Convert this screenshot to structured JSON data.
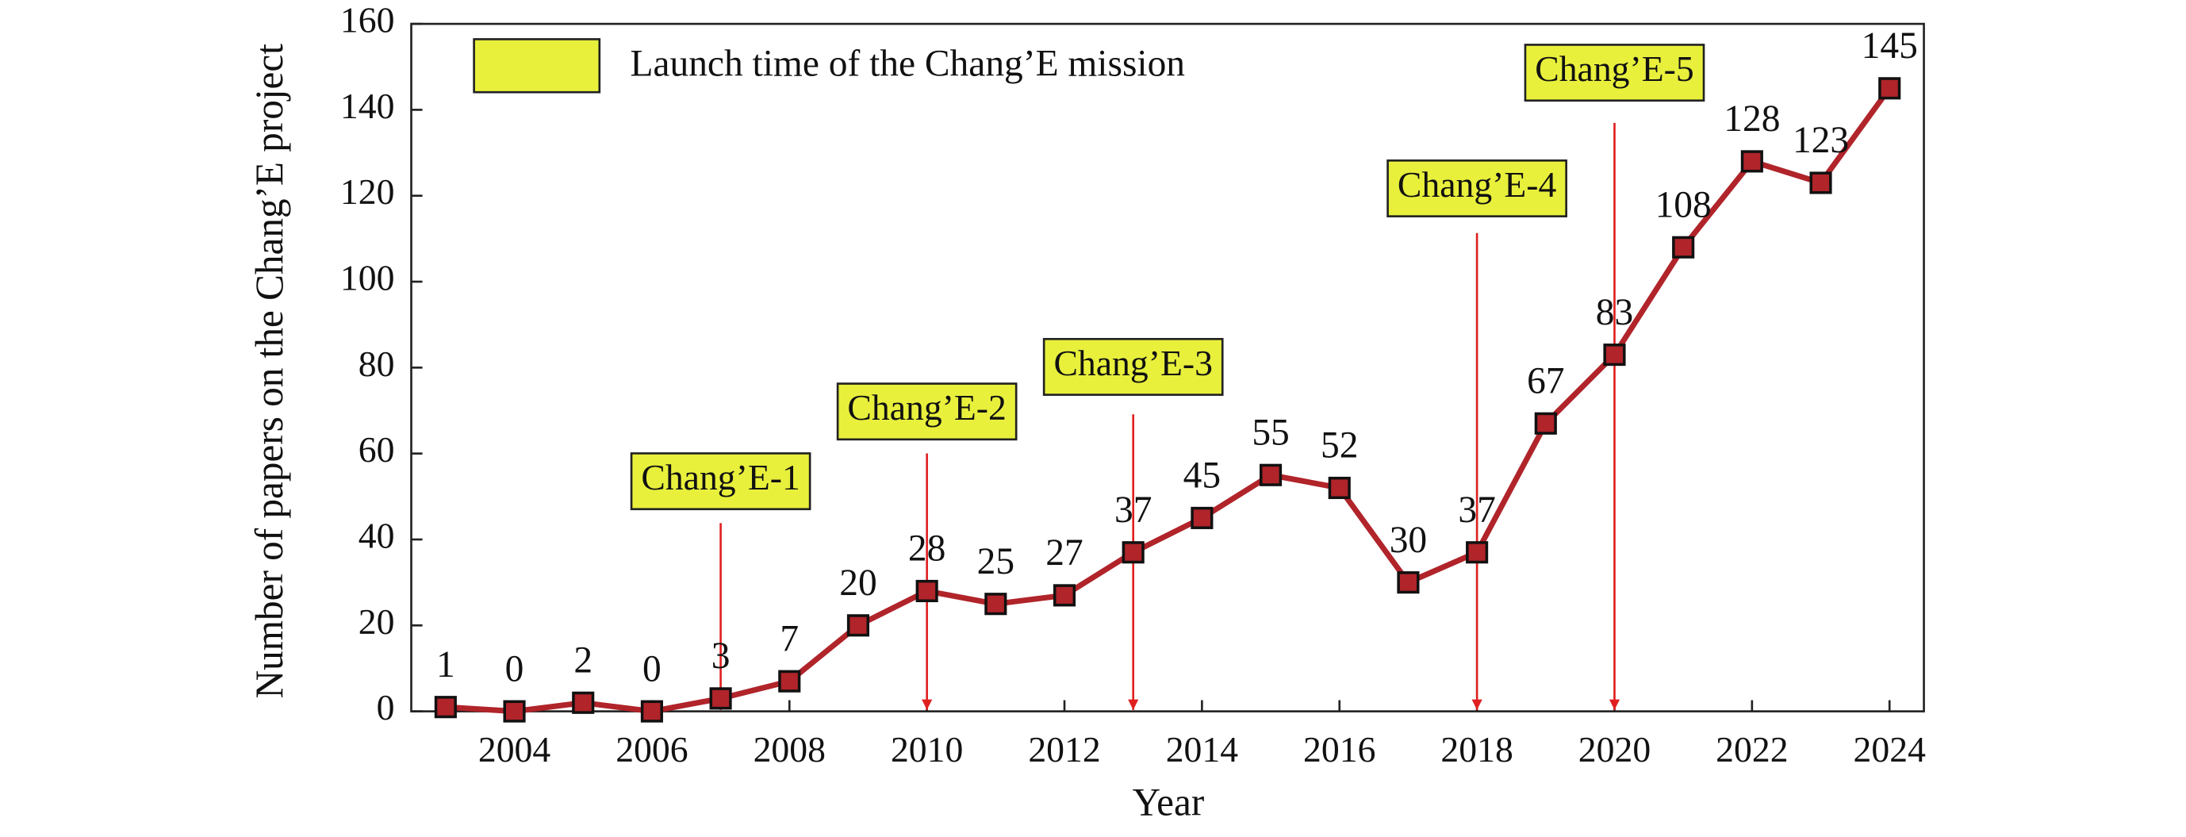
{
  "chart_data": {
    "type": "line",
    "x_label": "Year",
    "y_label": "Number of papers on the Chang’E project",
    "x": [
      2003,
      2004,
      2005,
      2006,
      2007,
      2008,
      2009,
      2010,
      2011,
      2012,
      2013,
      2014,
      2015,
      2016,
      2017,
      2018,
      2019,
      2020,
      2021,
      2022,
      2023,
      2024
    ],
    "series": [
      {
        "name": "Number of papers",
        "color": "#b0242a",
        "values": [
          1,
          0,
          2,
          0,
          3,
          7,
          20,
          28,
          25,
          27,
          37,
          45,
          55,
          52,
          30,
          37,
          67,
          83,
          108,
          128,
          123,
          145
        ]
      }
    ],
    "xlim": [
      2002.5,
      2024.5
    ],
    "xticks": [
      2004,
      2006,
      2008,
      2010,
      2012,
      2014,
      2016,
      2018,
      2020,
      2022,
      2024
    ],
    "ylim": [
      0,
      160
    ],
    "yticks": [
      0,
      20,
      40,
      60,
      80,
      100,
      120,
      140,
      160
    ],
    "legend": {
      "label": "Launch time of the Chang’E mission",
      "color": "#e8f03c",
      "position": "upper left"
    },
    "annotations": [
      {
        "text": "Chang’E-1",
        "x": 2007
      },
      {
        "text": "Chang’E-2",
        "x": 2010
      },
      {
        "text": "Chang’E-3",
        "x": 2013
      },
      {
        "text": "Chang’E-4",
        "x": 2018
      },
      {
        "text": "Chang’E-5",
        "x": 2020
      }
    ],
    "arrow_color": "#e02020"
  }
}
